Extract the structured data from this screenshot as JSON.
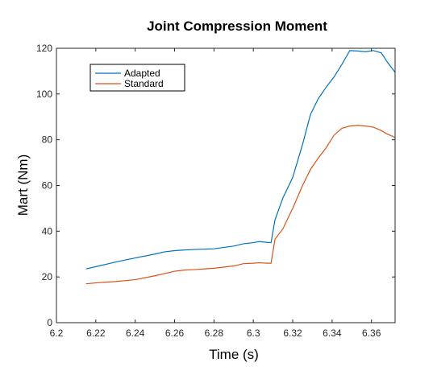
{
  "chart_data": {
    "type": "line",
    "title": "Joint Compression Moment",
    "xlabel": "Time (s)",
    "ylabel": "Mart (Nm)",
    "xlim": [
      6.2,
      6.372
    ],
    "ylim": [
      0,
      120
    ],
    "xticks": [
      6.2,
      6.22,
      6.24,
      6.26,
      6.28,
      6.3,
      6.32,
      6.34,
      6.36
    ],
    "xtick_labels": [
      "6.2",
      "6.22",
      "6.24",
      "6.26",
      "6.28",
      "6.3",
      "6.32",
      "6.34",
      "6.36"
    ],
    "yticks": [
      0,
      20,
      40,
      60,
      80,
      100,
      120
    ],
    "ytick_labels": [
      "0",
      "20",
      "40",
      "60",
      "80",
      "100",
      "120"
    ],
    "grid": false,
    "legend_position": "top-left",
    "series": [
      {
        "name": "Adapted",
        "color": "#0072BD",
        "x": [
          6.215,
          6.22,
          6.23,
          6.24,
          6.25,
          6.255,
          6.26,
          6.265,
          6.27,
          6.28,
          6.29,
          6.295,
          6.3,
          6.303,
          6.307,
          6.309,
          6.311,
          6.315,
          6.32,
          6.325,
          6.329,
          6.333,
          6.337,
          6.341,
          6.345,
          6.349,
          6.353,
          6.357,
          6.361,
          6.365,
          6.368,
          6.372
        ],
        "y": [
          23.5,
          24.5,
          26.5,
          28.3,
          30,
          31,
          31.5,
          31.8,
          32,
          32.3,
          33.5,
          34.5,
          35,
          35.5,
          35.1,
          35,
          45,
          54.5,
          63.5,
          78,
          91,
          98,
          103,
          107.5,
          113,
          119,
          118.8,
          118.5,
          119,
          118,
          114,
          109.5
        ]
      },
      {
        "name": "Standard",
        "color": "#D95319",
        "x": [
          6.215,
          6.22,
          6.23,
          6.24,
          6.25,
          6.255,
          6.26,
          6.265,
          6.27,
          6.28,
          6.29,
          6.295,
          6.3,
          6.303,
          6.307,
          6.309,
          6.311,
          6.315,
          6.32,
          6.325,
          6.329,
          6.333,
          6.337,
          6.341,
          6.345,
          6.349,
          6.353,
          6.357,
          6.361,
          6.365,
          6.368,
          6.372
        ],
        "y": [
          17,
          17.4,
          18,
          18.8,
          20.5,
          21.5,
          22.5,
          23,
          23.2,
          23.8,
          24.8,
          25.8,
          26,
          26.2,
          26,
          26,
          36.5,
          41,
          50,
          60,
          67,
          72,
          76.5,
          82,
          85,
          86,
          86.3,
          86,
          85.5,
          84,
          82.5,
          81
        ]
      }
    ]
  }
}
